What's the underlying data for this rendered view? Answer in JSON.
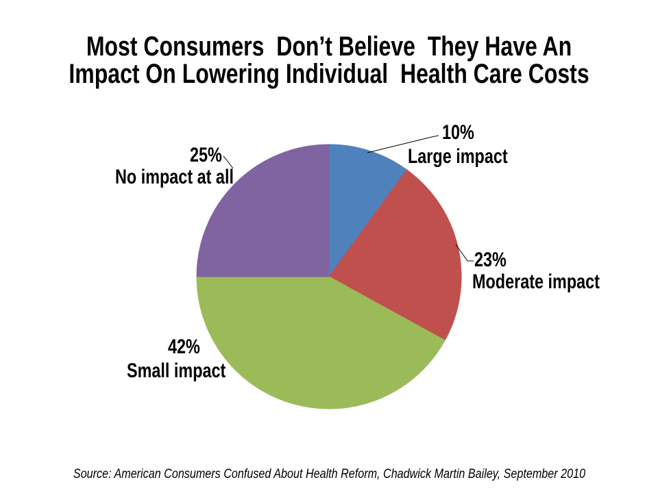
{
  "slide": {
    "title_line1": "Most Consumers  Don’t Believe  They Have An",
    "title_line2": "Impact On Lowering Individual  Health Care Costs",
    "source": "Source: American Consumers Confused About Health Reform, Chadwick Martin Bailey, September 2010",
    "background_color": "#FFFFFF",
    "text_color": "#000000"
  },
  "chart_data": {
    "type": "pie",
    "title": "Most Consumers Don’t Believe They Have An Impact On Lowering Individual Health Care Costs",
    "start_angle_deg": -90,
    "direction": "clockwise",
    "total": 100,
    "legend_position": "none",
    "data_labels": "outside callouts with leader lines",
    "leader_line_color": "#000000",
    "slices": [
      {
        "label": "Large impact",
        "pct_label": "10%",
        "value": 10,
        "color": "#4F81BD"
      },
      {
        "label": "Moderate impact",
        "pct_label": "23%",
        "value": 23,
        "color": "#C0504D"
      },
      {
        "label": "Small impact",
        "pct_label": "42%",
        "value": 42,
        "color": "#9BBB59"
      },
      {
        "label": "No impact at all",
        "pct_label": "25%",
        "value": 25,
        "color": "#8064A2"
      }
    ]
  }
}
